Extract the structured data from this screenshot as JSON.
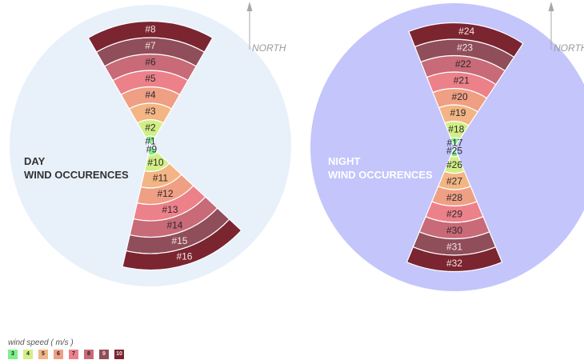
{
  "chart_data": [
    {
      "type": "polar-sector",
      "title": "DAY\nWIND OCCURENCES",
      "north_label": "NORTH",
      "background_color": "#e8f0fa",
      "title_color": "#333333",
      "sectors": [
        {
          "direction_deg": 0,
          "span_deg": 60,
          "segments": [
            "#1",
            "#2",
            "#3",
            "#4",
            "#5",
            "#6",
            "#7",
            "#8"
          ]
        },
        {
          "direction_deg": 163,
          "span_deg": 60,
          "segments": [
            "#9",
            "#10",
            "#11",
            "#12",
            "#13",
            "#14",
            "#15",
            "#16"
          ]
        }
      ]
    },
    {
      "type": "polar-sector",
      "title": "NIGHT\nWIND OCCURENCES",
      "north_label": "NORTH",
      "background_color": "#c3c5fb",
      "title_color": "#ffffff",
      "sectors": [
        {
          "direction_deg": 6,
          "span_deg": 55,
          "segments": [
            "#17",
            "#18",
            "#19",
            "#20",
            "#21",
            "#22",
            "#23",
            "#24"
          ]
        },
        {
          "direction_deg": 180,
          "span_deg": 45,
          "segments": [
            "#25",
            "#26",
            "#27",
            "#28",
            "#29",
            "#30",
            "#31",
            "#32"
          ]
        }
      ]
    }
  ],
  "legend": {
    "title": "wind speed ( m/s )",
    "items": [
      {
        "label": "3",
        "color": "#7df08a"
      },
      {
        "label": "4",
        "color": "#d2ee86"
      },
      {
        "label": "5",
        "color": "#f3b584"
      },
      {
        "label": "6",
        "color": "#ef9f84"
      },
      {
        "label": "7",
        "color": "#ec818a"
      },
      {
        "label": "8",
        "color": "#c86a77"
      },
      {
        "label": "9",
        "color": "#8f4e5a"
      },
      {
        "label": "10",
        "color": "#7a2530"
      }
    ]
  }
}
